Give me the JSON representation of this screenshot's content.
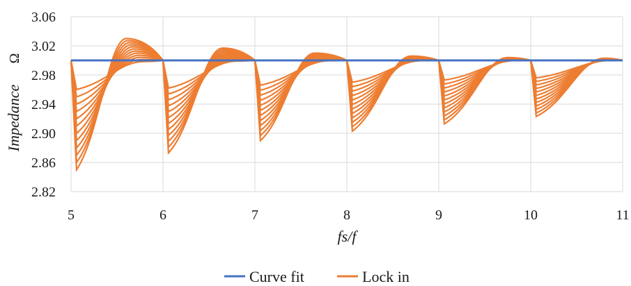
{
  "chart_data": {
    "type": "line",
    "xlabel": "fs/f",
    "ylabel": "Impedance",
    "yunit": "Ω",
    "xlim": [
      5,
      11
    ],
    "ylim": [
      2.82,
      3.06
    ],
    "xticks": [
      "5",
      "6",
      "7",
      "8",
      "9",
      "10",
      "11"
    ],
    "yticks": [
      "2.82",
      "2.86",
      "2.90",
      "2.94",
      "2.98",
      "3.02",
      "3.06"
    ],
    "grid": true,
    "legend_position": "bottom",
    "lock_in_curves_per_segment": 12,
    "series": [
      {
        "name": "Curve fit",
        "color": "#4472c4",
        "x": [
          5,
          11
        ],
        "y": [
          3.0,
          3.0
        ]
      },
      {
        "name": "Lock in",
        "color": "#ed7d31",
        "segments": [
          {
            "x_start": 5,
            "x_end": 6,
            "dip_min": 2.85,
            "dip_max": 2.96,
            "peak_max": 3.03,
            "peak_x": 5.6
          },
          {
            "x_start": 6,
            "x_end": 7,
            "dip_min": 2.873,
            "dip_max": 2.962,
            "peak_max": 3.017,
            "peak_x": 6.65
          },
          {
            "x_start": 7,
            "x_end": 8,
            "dip_min": 2.89,
            "dip_max": 2.966,
            "peak_max": 3.01,
            "peak_x": 7.65
          },
          {
            "x_start": 8,
            "x_end": 9,
            "dip_min": 2.903,
            "dip_max": 2.97,
            "peak_max": 3.006,
            "peak_x": 8.7
          },
          {
            "x_start": 9,
            "x_end": 10,
            "dip_min": 2.913,
            "dip_max": 2.973,
            "peak_max": 3.004,
            "peak_x": 9.75
          },
          {
            "x_start": 10,
            "x_end": 11,
            "dip_min": 2.923,
            "dip_max": 2.976,
            "peak_max": 3.003,
            "peak_x": 10.8
          }
        ]
      }
    ]
  }
}
